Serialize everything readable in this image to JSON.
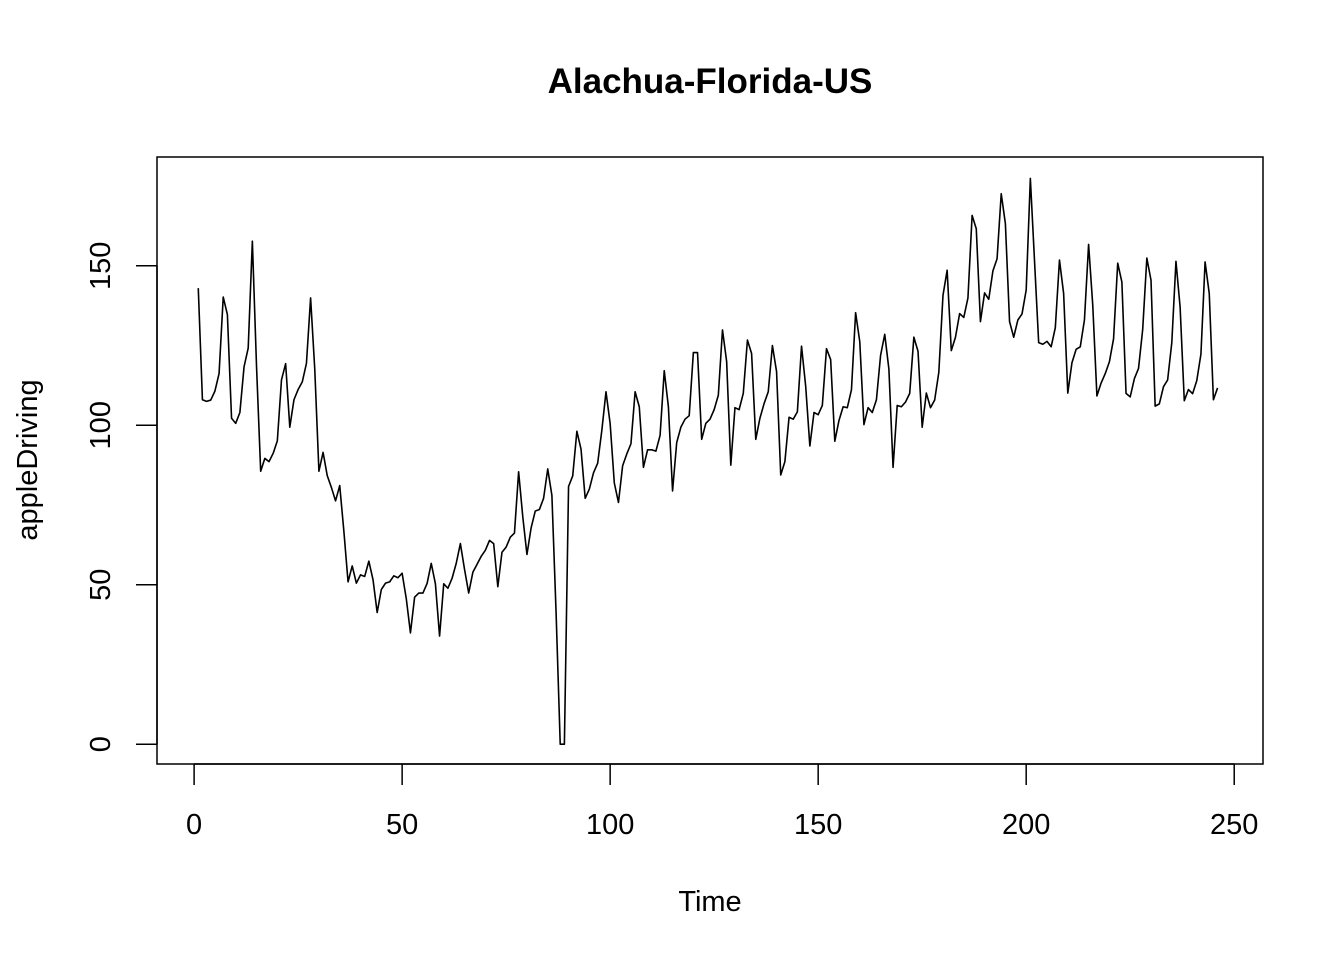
{
  "chart_data": {
    "type": "line",
    "title": "Alachua-Florida-US",
    "xlabel": "Time",
    "ylabel": "appleDriving",
    "xlim": [
      -8.92,
      256.92
    ],
    "ylim": [
      -6.2,
      184.1
    ],
    "xticks": [
      0,
      50,
      100,
      150,
      200,
      250
    ],
    "yticks": [
      0,
      50,
      100,
      150
    ],
    "grid": false,
    "legend": "none",
    "line_color": "#000000",
    "series": [
      {
        "values": [
          143.0,
          108.0,
          107.5,
          107.9,
          110.7,
          116.2,
          140.2,
          134.7,
          102.2,
          100.6,
          104.0,
          118.3,
          124.2,
          157.7,
          118.5,
          85.6,
          89.6,
          88.6,
          91.2,
          95.1,
          114.2,
          119.3,
          99.4,
          108.0,
          111.2,
          113.6,
          119.4,
          139.9,
          117.6,
          85.6,
          91.5,
          84.2,
          80.5,
          76.3,
          81.1,
          66.7,
          50.9,
          55.9,
          50.5,
          53.1,
          52.6,
          57.4,
          51.6,
          41.3,
          48.5,
          50.5,
          50.9,
          52.8,
          52.2,
          53.6,
          45.6,
          34.9,
          46.1,
          47.4,
          47.4,
          50.4,
          56.7,
          50.3,
          33.9,
          50.3,
          48.9,
          52.0,
          56.7,
          62.9,
          54.8,
          47.4,
          53.9,
          56.4,
          58.9,
          60.8,
          63.9,
          62.9,
          49.4,
          60.2,
          61.8,
          64.9,
          66.2,
          85.4,
          71.3,
          59.5,
          67.8,
          73.1,
          73.6,
          77.1,
          86.3,
          78.0,
          41.4,
          0.0,
          0.0,
          80.8,
          84.1,
          98.1,
          92.5,
          77.1,
          80.0,
          85.1,
          88.1,
          98.4,
          110.5,
          100.5,
          81.9,
          75.8,
          87.3,
          91.0,
          94.2,
          110.5,
          105.8,
          86.8,
          92.3,
          92.3,
          91.9,
          96.8,
          117.1,
          105.8,
          79.4,
          94.6,
          99.4,
          101.9,
          103.0,
          122.8,
          122.8,
          95.6,
          100.6,
          101.9,
          104.9,
          109.4,
          129.9,
          120.0,
          87.5,
          105.5,
          104.9,
          110.0,
          126.7,
          122.5,
          95.6,
          102.2,
          106.8,
          110.5,
          125.0,
          116.8,
          84.4,
          88.6,
          102.5,
          101.9,
          104.2,
          124.8,
          112.2,
          93.5,
          104.0,
          103.3,
          106.2,
          124.0,
          120.6,
          95.0,
          101.5,
          105.8,
          105.5,
          111.1,
          135.3,
          126.2,
          100.2,
          105.5,
          104.0,
          108.0,
          121.9,
          128.5,
          117.6,
          86.8,
          106.2,
          105.8,
          107.3,
          110.0,
          127.6,
          123.2,
          99.4,
          110.1,
          105.5,
          107.9,
          116.6,
          140.7,
          148.6,
          123.4,
          127.6,
          135.0,
          133.8,
          139.9,
          165.8,
          161.6,
          132.5,
          141.5,
          139.5,
          148.4,
          152.2,
          172.6,
          163.2,
          132.5,
          127.6,
          133.0,
          134.9,
          142.4,
          177.4,
          151.6,
          125.9,
          125.4,
          126.3,
          124.6,
          130.6,
          151.8,
          141.3,
          110.1,
          119.6,
          123.8,
          124.6,
          133.0,
          156.7,
          137.6,
          109.2,
          113.2,
          116.2,
          119.9,
          127.1,
          150.8,
          144.9,
          110.0,
          108.9,
          114.6,
          117.8,
          130.0,
          152.4,
          145.5,
          106.0,
          106.7,
          112.1,
          114.2,
          125.9,
          151.4,
          137.0,
          107.7,
          111.2,
          109.9,
          114.0,
          122.3,
          151.2,
          141.3,
          108.0,
          111.7
        ]
      }
    ]
  }
}
